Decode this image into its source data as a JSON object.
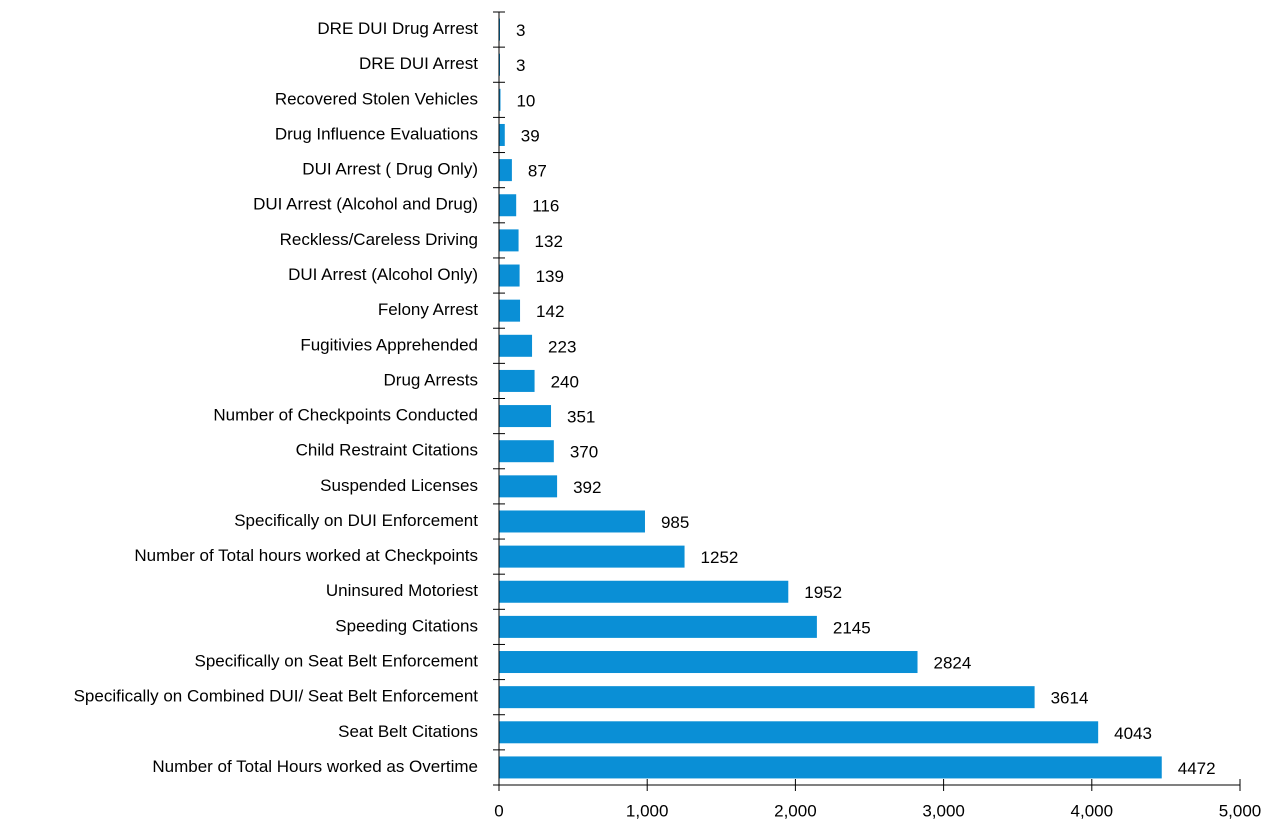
{
  "chart_data": {
    "type": "bar",
    "orientation": "horizontal",
    "title": "",
    "xlabel": "",
    "ylabel": "",
    "xlim": [
      0,
      5000
    ],
    "x_ticks": [
      0,
      1000,
      2000,
      3000,
      4000,
      5000
    ],
    "x_tick_labels": [
      "0",
      "1,000",
      "2,000",
      "3,000",
      "4,000",
      "5,000"
    ],
    "grid": false,
    "legend": "none",
    "bar_color": "#0a8fd6",
    "categories": [
      "DRE DUI Drug Arrest",
      "DRE DUI Arrest",
      "Recovered Stolen Vehicles",
      "Drug Influence Evaluations",
      "DUI Arrest ( Drug Only)",
      "DUI Arrest (Alcohol and Drug)",
      "Reckless/Careless Driving",
      "DUI  Arrest (Alcohol Only)",
      "Felony Arrest",
      "Fugitivies Apprehended",
      "Drug Arrests",
      "Number of Checkpoints Conducted",
      "Child Restraint Citations",
      "Suspended Licenses",
      "Specifically on DUI Enforcement",
      "Number of Total hours worked at Checkpoints",
      "Uninsured Motoriest",
      "Speeding Citations",
      "Specifically on Seat Belt Enforcement",
      "Specifically on Combined DUI/ Seat Belt Enforcement",
      "Seat Belt Citations",
      "Number of Total Hours worked as Overtime"
    ],
    "values": [
      3,
      3,
      10,
      39,
      87,
      116,
      132,
      139,
      142,
      223,
      240,
      351,
      370,
      392,
      985,
      1252,
      1952,
      2145,
      2824,
      3614,
      4043,
      4472
    ],
    "value_labels": [
      "3",
      "3",
      "10",
      "39",
      "87",
      "116",
      "132",
      "139",
      "142",
      "223",
      "240",
      "351",
      "370",
      "392",
      "985",
      "1252",
      "1952",
      "2145",
      "2824",
      "3614",
      "4043",
      "4472"
    ]
  }
}
